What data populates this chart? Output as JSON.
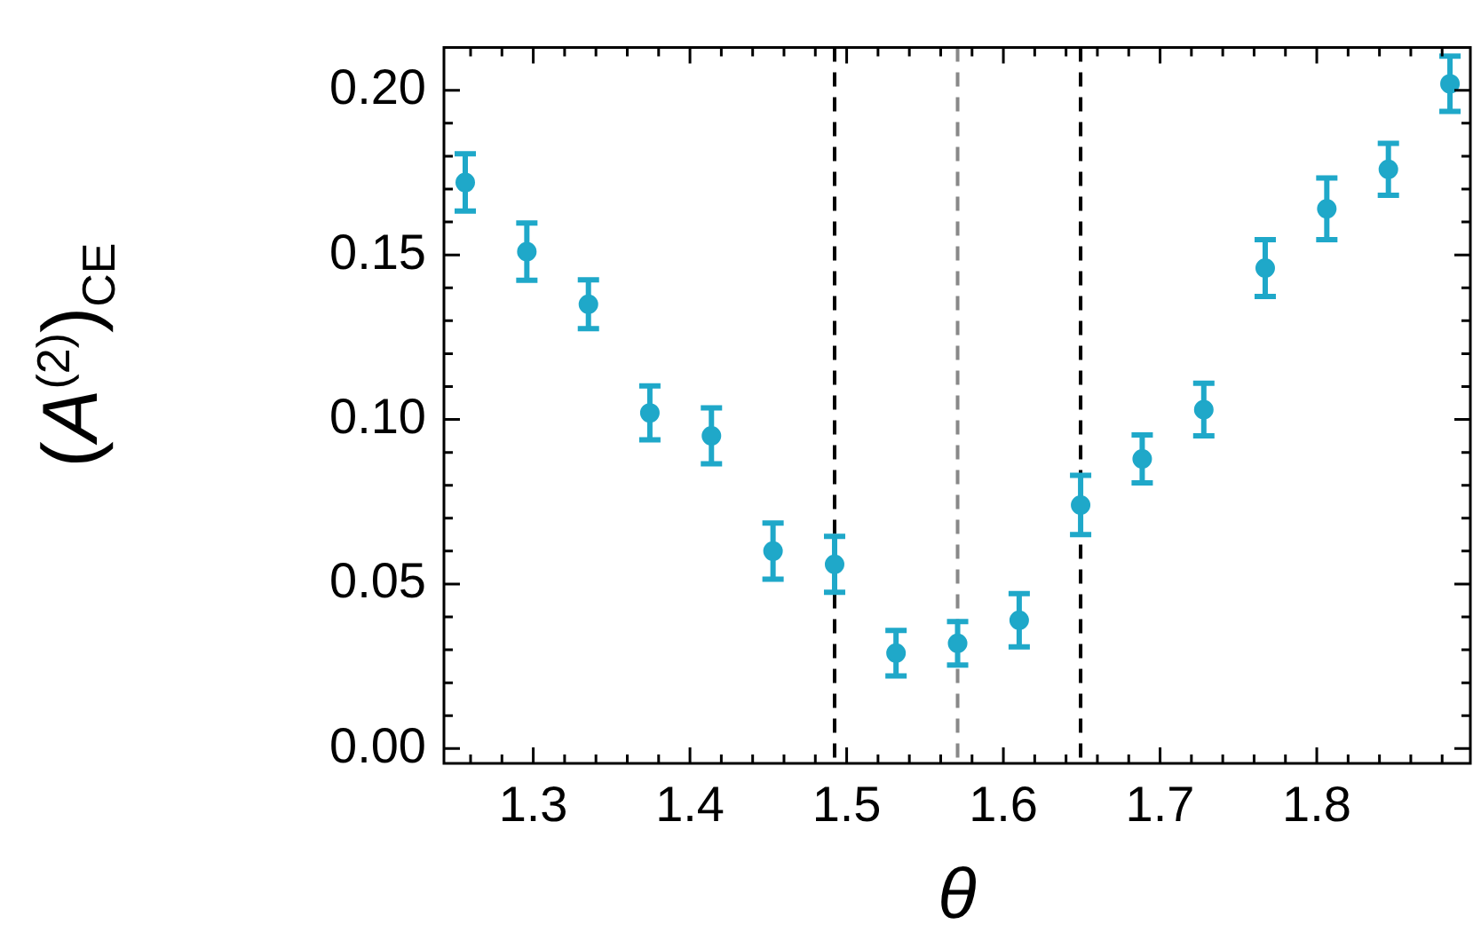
{
  "chart_data": {
    "type": "scatter",
    "xlabel": "θ",
    "ylabel": "(A$^{(2)}$)$_{CE}$",
    "x": [
      1.2566,
      1.2959,
      1.3352,
      1.3744,
      1.4137,
      1.453,
      1.4923,
      1.5315,
      1.5708,
      1.6101,
      1.6493,
      1.6886,
      1.7279,
      1.7671,
      1.8064,
      1.8457,
      1.885
    ],
    "series": [
      {
        "color": "#1fa8c9",
        "values": [
          0.172,
          0.151,
          0.135,
          0.102,
          0.095,
          0.06,
          0.056,
          0.029,
          0.032,
          0.039,
          0.074,
          0.088,
          0.103,
          0.146,
          0.164,
          0.176,
          0.202
        ],
        "errors": [
          0.0087,
          0.0087,
          0.0074,
          0.0082,
          0.0085,
          0.0085,
          0.0085,
          0.0069,
          0.0066,
          0.0081,
          0.009,
          0.0073,
          0.008,
          0.0086,
          0.0094,
          0.0079,
          0.0084
        ]
      }
    ],
    "marker": "circle",
    "grid": false,
    "legend": false,
    "xlim": [
      1.243,
      1.898
    ],
    "ylim": [
      -0.0045,
      0.213
    ],
    "xticks": [
      {
        "value": 1.26,
        "label": null
      },
      {
        "value": 1.28,
        "label": null
      },
      1.3,
      {
        "value": 1.32,
        "label": null
      },
      {
        "value": 1.34,
        "label": null
      },
      {
        "value": 1.36,
        "label": null
      },
      {
        "value": 1.38,
        "label": null
      },
      1.4,
      {
        "value": 1.42,
        "label": null
      },
      {
        "value": 1.44,
        "label": null
      },
      {
        "value": 1.46,
        "label": null
      },
      {
        "value": 1.48,
        "label": null
      },
      1.5,
      {
        "value": 1.52,
        "label": null
      },
      {
        "value": 1.54,
        "label": null
      },
      {
        "value": 1.56,
        "label": null
      },
      {
        "value": 1.58,
        "label": null
      },
      1.6,
      {
        "value": 1.62,
        "label": null
      },
      {
        "value": 1.64,
        "label": null
      },
      {
        "value": 1.66,
        "label": null
      },
      {
        "value": 1.68,
        "label": null
      },
      1.7,
      {
        "value": 1.72,
        "label": null
      },
      {
        "value": 1.74,
        "label": null
      },
      {
        "value": 1.76,
        "label": null
      },
      {
        "value": 1.78,
        "label": null
      },
      1.8,
      {
        "value": 1.82,
        "label": null
      },
      {
        "value": 1.84,
        "label": null
      },
      {
        "value": 1.86,
        "label": null
      },
      {
        "value": 1.88,
        "label": null
      }
    ],
    "yticks": [
      {
        "value": 0.0,
        "label": "0.00"
      },
      {
        "value": 0.01,
        "label": null
      },
      {
        "value": 0.02,
        "label": null
      },
      {
        "value": 0.03,
        "label": null
      },
      {
        "value": 0.04,
        "label": null
      },
      {
        "value": 0.05,
        "label": "0.05"
      },
      {
        "value": 0.06,
        "label": null
      },
      {
        "value": 0.07,
        "label": null
      },
      {
        "value": 0.08,
        "label": null
      },
      {
        "value": 0.09,
        "label": null
      },
      {
        "value": 0.1,
        "label": "0.10"
      },
      {
        "value": 0.11,
        "label": null
      },
      {
        "value": 0.12,
        "label": null
      },
      {
        "value": 0.13,
        "label": null
      },
      {
        "value": 0.14,
        "label": null
      },
      {
        "value": 0.15,
        "label": "0.15"
      },
      {
        "value": 0.16,
        "label": null
      },
      {
        "value": 0.17,
        "label": null
      },
      {
        "value": 0.18,
        "label": null
      },
      {
        "value": 0.19,
        "label": null
      },
      {
        "value": 0.2,
        "label": "0.20"
      }
    ],
    "ref_lines": [
      {
        "axis": "x",
        "value": 1.4923,
        "color": "#000000",
        "line_style": "dashed"
      },
      {
        "axis": "x",
        "value": 1.5708,
        "color": "#888888",
        "line_style": "dashed"
      },
      {
        "axis": "x",
        "value": 1.6493,
        "color": "#000000",
        "line_style": "dashed"
      }
    ]
  }
}
